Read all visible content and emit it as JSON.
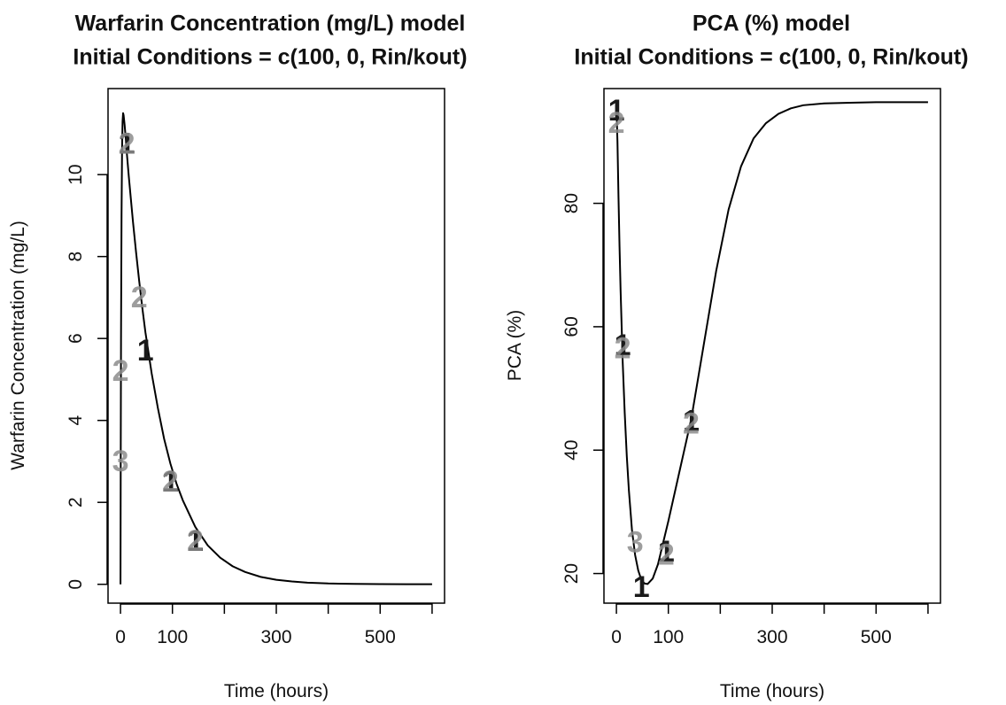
{
  "chart_data": [
    {
      "type": "line",
      "title": [
        "Warfarin Concentration (mg/L) model",
        "Initial Conditions =  c(100, 0, Rin/kout)"
      ],
      "xlabel": "Time (hours)",
      "ylabel": "Warfarin Concentration (mg/L)",
      "xlim": [
        -24,
        624
      ],
      "ylim": [
        -0.46,
        12.1
      ],
      "x_ticks": [
        0,
        100,
        200,
        300,
        400,
        500,
        600
      ],
      "x_tick_labels": [
        "0",
        "100",
        "",
        "300",
        "",
        "500",
        ""
      ],
      "y_ticks": [
        0,
        2,
        4,
        6,
        8,
        10
      ],
      "y_tick_labels": [
        "0",
        "2",
        "4",
        "6",
        "8",
        "10"
      ],
      "grid": false,
      "series": [
        {
          "x": [
            0,
            0.5,
            1,
            2,
            3,
            4,
            5,
            6,
            8,
            10,
            12,
            16,
            20,
            24,
            30,
            36,
            42,
            48,
            60,
            72,
            84,
            96,
            108,
            120,
            144,
            168,
            192,
            216,
            240,
            270,
            300,
            330,
            360,
            400,
            450,
            500,
            550,
            600
          ],
          "y": [
            0,
            3.5,
            6.0,
            9.0,
            10.6,
            11.3,
            11.5,
            11.45,
            11.2,
            10.9,
            10.55,
            9.95,
            9.4,
            8.85,
            8.1,
            7.4,
            6.75,
            6.15,
            5.15,
            4.3,
            3.55,
            2.95,
            2.45,
            2.05,
            1.4,
            0.95,
            0.65,
            0.44,
            0.3,
            0.18,
            0.11,
            0.07,
            0.04,
            0.02,
            0.01,
            0.005,
            0.002,
            0.001
          ]
        }
      ],
      "markers": [
        {
          "label": "1",
          "x": 12,
          "y": 10.75,
          "style": "dark"
        },
        {
          "label": "2",
          "x": 12,
          "y": 10.75,
          "style": "grey"
        },
        {
          "label": "2",
          "x": 36,
          "y": 7.0,
          "style": "grey"
        },
        {
          "label": "1",
          "x": 48,
          "y": 5.7,
          "style": "dark"
        },
        {
          "label": "2",
          "x": 0,
          "y": 5.2,
          "style": "grey"
        },
        {
          "label": "3",
          "x": 0,
          "y": 3.0,
          "style": "grey"
        },
        {
          "label": "1",
          "x": 96,
          "y": 2.5,
          "style": "dark"
        },
        {
          "label": "2",
          "x": 96,
          "y": 2.5,
          "style": "grey"
        },
        {
          "label": "1",
          "x": 144,
          "y": 1.05,
          "style": "dark"
        },
        {
          "label": "2",
          "x": 144,
          "y": 1.05,
          "style": "grey"
        }
      ]
    },
    {
      "type": "line",
      "title": [
        "PCA (%) model",
        "Initial Conditions =  c(100, 0, Rin/kout)"
      ],
      "xlabel": "Time (hours)",
      "ylabel": "PCA (%)",
      "xlim": [
        -24,
        624
      ],
      "ylim": [
        15.2,
        98.6
      ],
      "x_ticks": [
        0,
        100,
        200,
        300,
        400,
        500,
        600
      ],
      "x_tick_labels": [
        "0",
        "100",
        "",
        "300",
        "",
        "500",
        ""
      ],
      "y_ticks": [
        20,
        40,
        60,
        80
      ],
      "y_tick_labels": [
        "20",
        "40",
        "60",
        "80"
      ],
      "grid": false,
      "series": [
        {
          "x": [
            0,
            2,
            4,
            6,
            8,
            12,
            16,
            20,
            24,
            30,
            36,
            42,
            48,
            54,
            60,
            70,
            80,
            90,
            100,
            120,
            144,
            168,
            192,
            216,
            240,
            264,
            288,
            312,
            336,
            360,
            400,
            450,
            500,
            550,
            600
          ],
          "y": [
            96.0,
            90.0,
            81.0,
            73.0,
            66.0,
            54.5,
            46.0,
            39.0,
            33.5,
            27.0,
            23.0,
            20.5,
            19.0,
            18.4,
            18.3,
            19.2,
            21.5,
            25.0,
            28.5,
            36.0,
            45.0,
            57.0,
            69.0,
            79.0,
            86.0,
            90.5,
            93.0,
            94.5,
            95.4,
            95.9,
            96.2,
            96.3,
            96.4,
            96.4,
            96.4
          ]
        }
      ],
      "markers": [
        {
          "label": "1",
          "x": 0,
          "y": 95.0,
          "style": "dark"
        },
        {
          "label": "2",
          "x": 0,
          "y": 93.0,
          "style": "grey"
        },
        {
          "label": "1",
          "x": 12,
          "y": 57.0,
          "style": "dark"
        },
        {
          "label": "2",
          "x": 12,
          "y": 56.5,
          "style": "grey"
        },
        {
          "label": "3",
          "x": 36,
          "y": 25.0,
          "style": "grey"
        },
        {
          "label": "1",
          "x": 48,
          "y": 17.8,
          "style": "dark"
        },
        {
          "label": "1",
          "x": 96,
          "y": 23.5,
          "style": "dark"
        },
        {
          "label": "2",
          "x": 96,
          "y": 23.0,
          "style": "grey"
        },
        {
          "label": "1",
          "x": 144,
          "y": 44.7,
          "style": "dark"
        },
        {
          "label": "2",
          "x": 144,
          "y": 44.3,
          "style": "grey"
        }
      ]
    }
  ],
  "colors": {
    "line": "#000000",
    "marker_dark": "#1a1a1a",
    "marker_grey": "#8c8c8c",
    "background": "#ffffff"
  }
}
